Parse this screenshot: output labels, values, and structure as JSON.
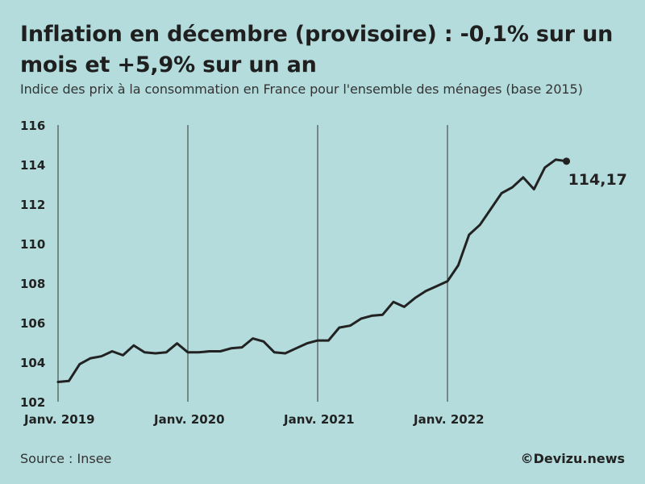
{
  "chart_data": {
    "type": "line",
    "title": "Inflation en décembre (provisoire) : -0,1% sur un mois et +5,9% sur un an",
    "subtitle": "Indice des prix à la consommation en France pour l'ensemble des ménages (base 2015)",
    "xlabel": "",
    "ylabel": "",
    "ylim": [
      102,
      116
    ],
    "yticks": [
      "102",
      "104",
      "106",
      "108",
      "110",
      "112",
      "114",
      "116"
    ],
    "xticks": [
      {
        "label": "Janv. 2019",
        "index": 0
      },
      {
        "label": "Janv. 2020",
        "index": 12
      },
      {
        "label": "Janv. 2021",
        "index": 24
      },
      {
        "label": "Janv. 2022",
        "index": 36
      }
    ],
    "series": [
      {
        "name": "Indice des prix à la consommation",
        "color": "#222222",
        "values": [
          103.0,
          103.05,
          103.9,
          104.2,
          104.3,
          104.55,
          104.35,
          104.85,
          104.5,
          104.45,
          104.5,
          104.95,
          104.5,
          104.5,
          104.55,
          104.55,
          104.7,
          104.75,
          105.2,
          105.05,
          104.5,
          104.45,
          104.7,
          104.95,
          105.1,
          105.1,
          105.75,
          105.85,
          106.2,
          106.35,
          106.4,
          107.05,
          106.8,
          107.25,
          107.6,
          107.85,
          108.1,
          108.9,
          110.45,
          110.95,
          111.75,
          112.55,
          112.85,
          113.35,
          112.75,
          113.85,
          114.25,
          114.17
        ]
      }
    ],
    "last_label": "114,17",
    "grid": "vertical lines at january of each year"
  },
  "footer": {
    "source": "Source : Insee",
    "credit": "©Devizu.news"
  }
}
